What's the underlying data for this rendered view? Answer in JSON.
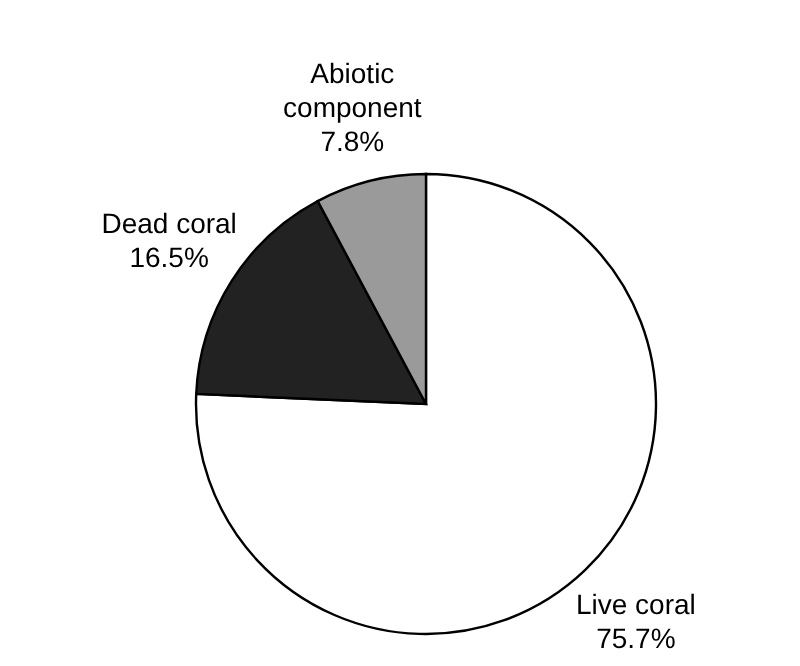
{
  "chart_data": {
    "type": "pie",
    "categories": [
      "Live coral",
      "Dead coral",
      "Abiotic component"
    ],
    "values": [
      75.7,
      16.5,
      7.8
    ],
    "value_labels": [
      "75.7%",
      "16.5%",
      "7.8%"
    ],
    "colors": [
      "#ffffff",
      "#222222",
      "#9a9a9a"
    ]
  }
}
